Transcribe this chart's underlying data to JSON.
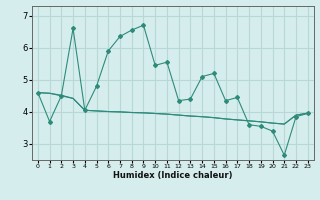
{
  "xlabel": "Humidex (Indice chaleur)",
  "x": [
    0,
    1,
    2,
    3,
    4,
    5,
    6,
    7,
    8,
    9,
    10,
    11,
    12,
    13,
    14,
    15,
    16,
    17,
    18,
    19,
    20,
    21,
    22,
    23
  ],
  "y_line1": [
    4.6,
    3.7,
    4.5,
    6.6,
    4.05,
    4.8,
    5.9,
    6.35,
    6.55,
    6.7,
    5.45,
    5.55,
    4.35,
    4.4,
    5.1,
    5.2,
    4.35,
    4.45,
    3.6,
    3.55,
    3.4,
    2.65,
    3.85,
    3.95
  ],
  "y_line2": [
    4.6,
    4.58,
    4.5,
    4.42,
    4.05,
    4.03,
    4.01,
    4.0,
    3.98,
    3.97,
    3.95,
    3.93,
    3.9,
    3.87,
    3.85,
    3.82,
    3.78,
    3.75,
    3.72,
    3.69,
    3.65,
    3.62,
    3.9,
    3.96
  ],
  "y_line3": [
    4.6,
    4.58,
    4.52,
    4.42,
    4.05,
    4.03,
    4.01,
    4.0,
    3.98,
    3.97,
    3.95,
    3.93,
    3.9,
    3.87,
    3.85,
    3.82,
    3.78,
    3.75,
    3.72,
    3.69,
    3.65,
    3.62,
    3.9,
    3.96
  ],
  "line_color": "#2e8b7a",
  "bg_color": "#d5eeed",
  "grid_color": "#b8d8d8",
  "ylim": [
    2.5,
    7.3
  ],
  "xlim": [
    -0.5,
    23.5
  ],
  "yticks": [
    3,
    4,
    5,
    6,
    7
  ],
  "xticks": [
    0,
    1,
    2,
    3,
    4,
    5,
    6,
    7,
    8,
    9,
    10,
    11,
    12,
    13,
    14,
    15,
    16,
    17,
    18,
    19,
    20,
    21,
    22,
    23
  ]
}
